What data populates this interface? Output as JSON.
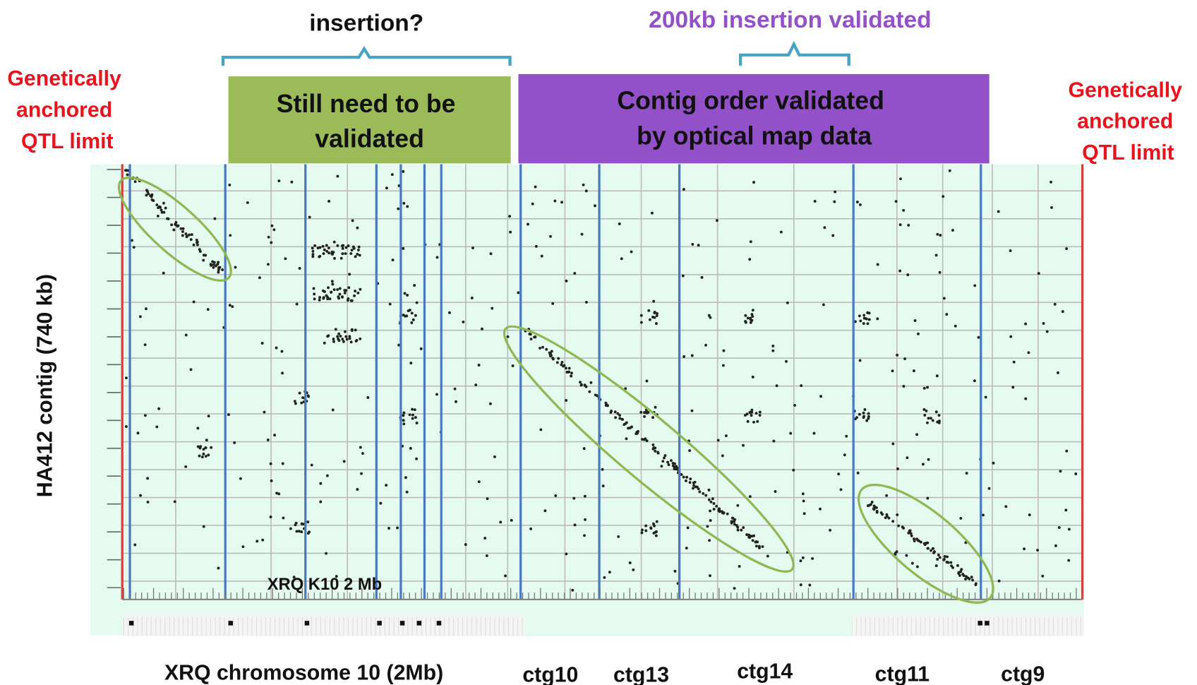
{
  "header": {
    "left_question": "insertion?",
    "right_note": "200kb insertion validated"
  },
  "left_limit": {
    "lines": [
      "Genetically",
      "anchored",
      "QTL limit"
    ]
  },
  "right_limit": {
    "lines": [
      "Genetically",
      "anchored",
      "QTL limit"
    ]
  },
  "green_box": {
    "lines": [
      "Still need to be",
      "validated"
    ]
  },
  "purple_box": {
    "lines": [
      "Contig order validated",
      "by optical map data"
    ]
  },
  "y_axis_label": "HA412 contig (740 kb)",
  "plot_label": "XRQ K10 2 Mb",
  "x_labels": [
    "XRQ chromosome 10 (2Mb)",
    "ctg10",
    "ctg13",
    "ctg14",
    "ctg11",
    "ctg9"
  ]
}
